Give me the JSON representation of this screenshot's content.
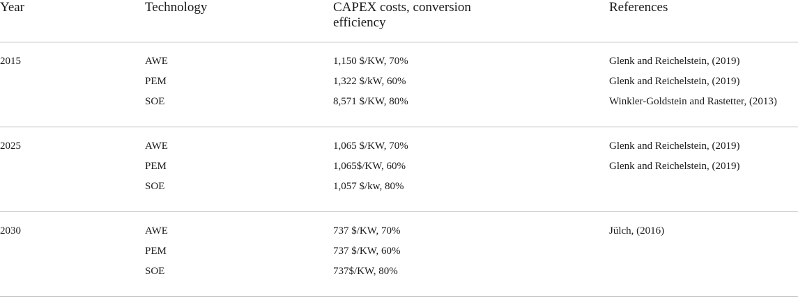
{
  "headers": {
    "year": "Year",
    "technology": "Technology",
    "capex_line1": "CAPEX costs, conversion",
    "capex_line2": "efficiency",
    "references": "References"
  },
  "groups": [
    {
      "year": "2015",
      "rows": [
        {
          "technology": "AWE",
          "capex": "1,150 $/KW, 70%",
          "reference": "Glenk and Reichelstein, (2019)"
        },
        {
          "technology": "PEM",
          "capex": "1,322 $/kW, 60%",
          "reference": "Glenk and Reichelstein, (2019)"
        },
        {
          "technology": "SOE",
          "capex": "8,571 $/KW, 80%",
          "reference": "Winkler-Goldstein and Rastetter, (2013)"
        }
      ]
    },
    {
      "year": "2025",
      "rows": [
        {
          "technology": "AWE",
          "capex": "1,065 $/KW, 70%",
          "reference": "Glenk and Reichelstein, (2019)"
        },
        {
          "technology": "PEM",
          "capex": "1,065$/KW, 60%",
          "reference": "Glenk and Reichelstein, (2019)"
        },
        {
          "technology": "SOE",
          "capex": "1,057 $/kw, 80%",
          "reference": ""
        }
      ]
    },
    {
      "year": "2030",
      "rows": [
        {
          "technology": "AWE",
          "capex": "737 $/KW, 70%",
          "reference": "Jülch, (2016)"
        },
        {
          "technology": "PEM",
          "capex": "737 $/KW, 60%",
          "reference": ""
        },
        {
          "technology": "SOE",
          "capex": "737$/KW, 80%",
          "reference": ""
        }
      ]
    }
  ]
}
